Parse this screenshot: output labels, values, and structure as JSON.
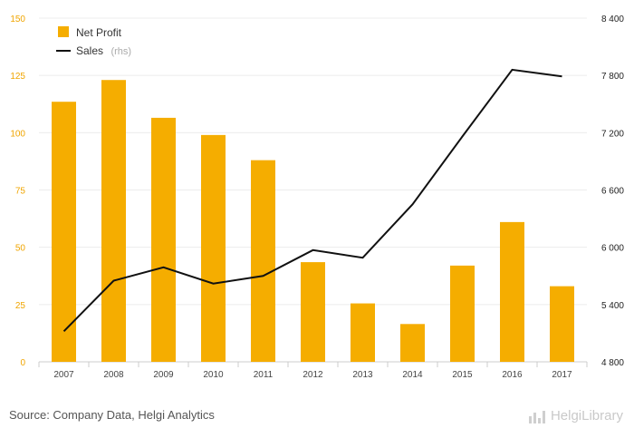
{
  "chart_data": {
    "type": "bar+line",
    "categories": [
      "2007",
      "2008",
      "2009",
      "2010",
      "2011",
      "2012",
      "2013",
      "2014",
      "2015",
      "2016",
      "2017"
    ],
    "series": [
      {
        "name": "Net Profit",
        "type": "bar",
        "axis": "left",
        "color": "#f5ad00",
        "values": [
          113.5,
          123,
          106.5,
          99,
          88,
          43.5,
          25.5,
          16.5,
          42,
          61,
          33
        ]
      },
      {
        "name": "Sales",
        "name_suffix": "(rhs)",
        "type": "line",
        "axis": "right",
        "color": "#111111",
        "values": [
          5120,
          5650,
          5790,
          5620,
          5700,
          5970,
          5890,
          6450,
          7160,
          7860,
          7790
        ]
      }
    ],
    "left_axis": {
      "ylim": [
        0,
        150
      ],
      "ticks": [
        "0",
        "25",
        "50",
        "75",
        "100",
        "125",
        "150"
      ],
      "color": "#f0a500"
    },
    "right_axis": {
      "ylim": [
        4800,
        8400
      ],
      "ticks": [
        "4 800",
        "5 400",
        "6 000",
        "6 600",
        "7 200",
        "7 800",
        "8 400"
      ]
    },
    "grid": true,
    "legend": "top-left"
  },
  "footer": {
    "source": "Source: Company Data, Helgi Analytics",
    "brand": "HelgiLibrary"
  }
}
